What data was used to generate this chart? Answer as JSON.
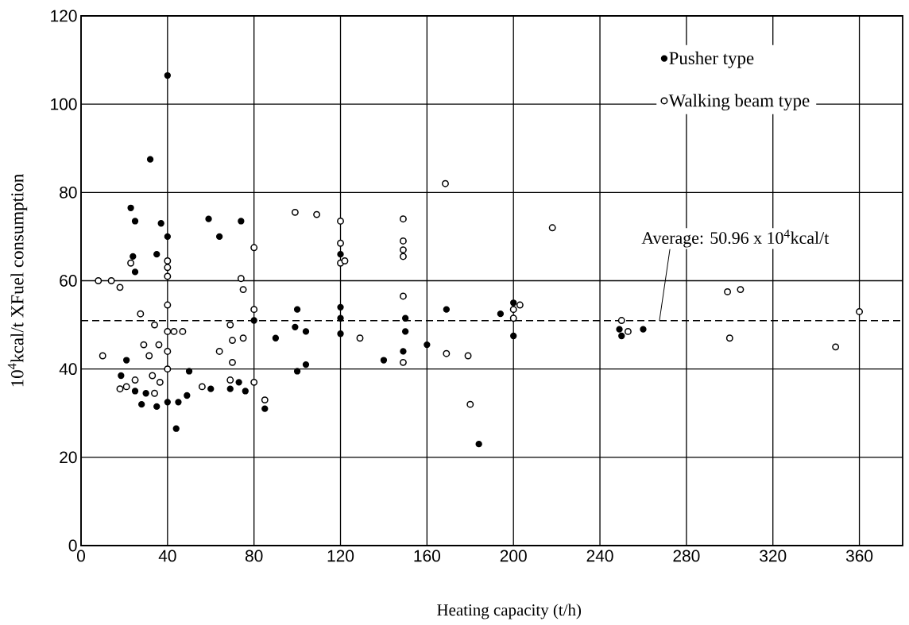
{
  "chart_data": {
    "type": "scatter",
    "xlabel": "Heating capacity (t/h)",
    "ylabel": "10$^{4}$kcal/t   XFuel consumption",
    "xlim": [
      0,
      380
    ],
    "ylim": [
      0,
      120
    ],
    "xticks": [
      0,
      40,
      80,
      120,
      160,
      200,
      240,
      280,
      320,
      360
    ],
    "yticks": [
      0,
      20,
      40,
      60,
      80,
      100,
      120
    ],
    "grid": true,
    "legend": "top right",
    "marker": "circle",
    "series": [
      {
        "name": "Pusher type",
        "color": "#000000",
        "x": [
          40,
          32,
          23,
          25,
          37,
          40,
          59,
          74,
          64,
          120,
          35,
          24,
          25,
          100,
          120,
          80,
          120,
          99,
          104,
          120,
          90,
          21,
          50,
          100,
          104,
          18.5,
          25,
          30,
          28,
          35,
          40,
          45,
          49,
          44,
          60,
          69,
          73,
          76,
          85,
          169,
          194,
          200,
          150,
          150,
          149,
          140,
          160,
          184,
          200,
          249,
          250,
          260
        ],
        "values": [
          106.5,
          87.5,
          76.5,
          73.5,
          73,
          70,
          74,
          73.5,
          70,
          66,
          66,
          65.5,
          62,
          53.5,
          54,
          51,
          51.5,
          49.5,
          48.5,
          48,
          47,
          42,
          39.5,
          39.5,
          41,
          38.5,
          35,
          34.5,
          32,
          31.5,
          32.5,
          32.5,
          34,
          26.5,
          35.5,
          35.5,
          37,
          35,
          31,
          53.5,
          52.5,
          55,
          51.5,
          48.5,
          44,
          42,
          45.5,
          23,
          47.5,
          49,
          47.5,
          49
        ]
      },
      {
        "name": "Walking beam type",
        "color": "#000000",
        "x": [
          99,
          109,
          120,
          120,
          120,
          122,
          80,
          23,
          40,
          40,
          40,
          8,
          14,
          18,
          74,
          75,
          40,
          27.5,
          80,
          34,
          69,
          40,
          43,
          47,
          129,
          75,
          70,
          10,
          29,
          36,
          40,
          31.5,
          64,
          70,
          40,
          18,
          21,
          25,
          33,
          36.5,
          34,
          56,
          69,
          80,
          85,
          168.5,
          149,
          149,
          149,
          149,
          149,
          149,
          218,
          200,
          200,
          203,
          169,
          179,
          180,
          250,
          253,
          300,
          349,
          360,
          299,
          305
        ],
        "values": [
          75.5,
          75,
          73.5,
          68.5,
          64,
          64.5,
          67.5,
          64,
          64.5,
          63,
          61,
          60,
          60,
          58.5,
          60.5,
          58,
          54.5,
          52.5,
          53.5,
          50,
          50,
          48.5,
          48.5,
          48.5,
          47,
          47,
          46.5,
          43,
          45.5,
          45.5,
          44,
          43,
          44,
          41.5,
          40,
          35.5,
          36,
          37.5,
          38.5,
          37,
          34.5,
          36,
          37.5,
          37,
          33,
          82,
          74,
          69,
          67,
          65.5,
          56.5,
          41.5,
          72,
          53.5,
          51.5,
          54.5,
          43.5,
          43,
          32,
          51,
          48.5,
          47,
          45,
          53,
          57.5,
          58
        ]
      }
    ],
    "ref_lines": [
      {
        "axis": "y",
        "value": 50.96,
        "label": "Average: 50.96 x 10$^{4}$kcal/t",
        "line_style": "dashed"
      }
    ]
  }
}
